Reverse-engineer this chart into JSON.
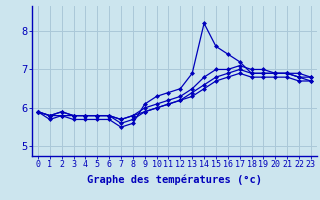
{
  "title": "",
  "xlabel": "Graphe des températures (°c)",
  "ylabel": "",
  "background_color": "#cce5ee",
  "grid_color": "#aac8d8",
  "line_color": "#0000bb",
  "x_hours": [
    0,
    1,
    2,
    3,
    4,
    5,
    6,
    7,
    8,
    9,
    10,
    11,
    12,
    13,
    14,
    15,
    16,
    17,
    18,
    19,
    20,
    21,
    22,
    23
  ],
  "series": [
    [
      5.9,
      5.7,
      5.8,
      5.7,
      5.7,
      5.7,
      5.7,
      5.5,
      5.6,
      6.1,
      6.3,
      6.4,
      6.5,
      6.9,
      8.2,
      7.6,
      7.4,
      7.2,
      6.9,
      6.9,
      6.9,
      6.9,
      6.8,
      6.7
    ],
    [
      5.9,
      5.8,
      5.8,
      5.8,
      5.8,
      5.8,
      5.8,
      5.7,
      5.8,
      6.0,
      6.1,
      6.2,
      6.3,
      6.5,
      6.8,
      7.0,
      7.0,
      7.1,
      7.0,
      7.0,
      6.9,
      6.9,
      6.9,
      6.8
    ],
    [
      5.9,
      5.8,
      5.9,
      5.8,
      5.8,
      5.8,
      5.8,
      5.7,
      5.8,
      5.9,
      6.0,
      6.1,
      6.2,
      6.4,
      6.6,
      6.8,
      6.9,
      7.0,
      6.9,
      6.9,
      6.9,
      6.9,
      6.8,
      6.8
    ],
    [
      5.9,
      5.8,
      5.9,
      5.8,
      5.8,
      5.8,
      5.8,
      5.6,
      5.7,
      5.9,
      6.0,
      6.1,
      6.2,
      6.3,
      6.5,
      6.7,
      6.8,
      6.9,
      6.8,
      6.8,
      6.8,
      6.8,
      6.7,
      6.7
    ]
  ],
  "ylim": [
    4.75,
    8.65
  ],
  "yticks": [
    5,
    6,
    7,
    8
  ],
  "xtick_labels": [
    "0",
    "1",
    "2",
    "3",
    "4",
    "5",
    "6",
    "7",
    "8",
    "9",
    "10",
    "11",
    "12",
    "13",
    "14",
    "15",
    "16",
    "17",
    "18",
    "19",
    "20",
    "21",
    "22",
    "23"
  ],
  "line_width": 0.9,
  "marker": "D",
  "marker_size": 2.0,
  "tick_fontsize": 6.0,
  "xlabel_fontsize": 7.5,
  "ytick_fontsize": 7.5
}
